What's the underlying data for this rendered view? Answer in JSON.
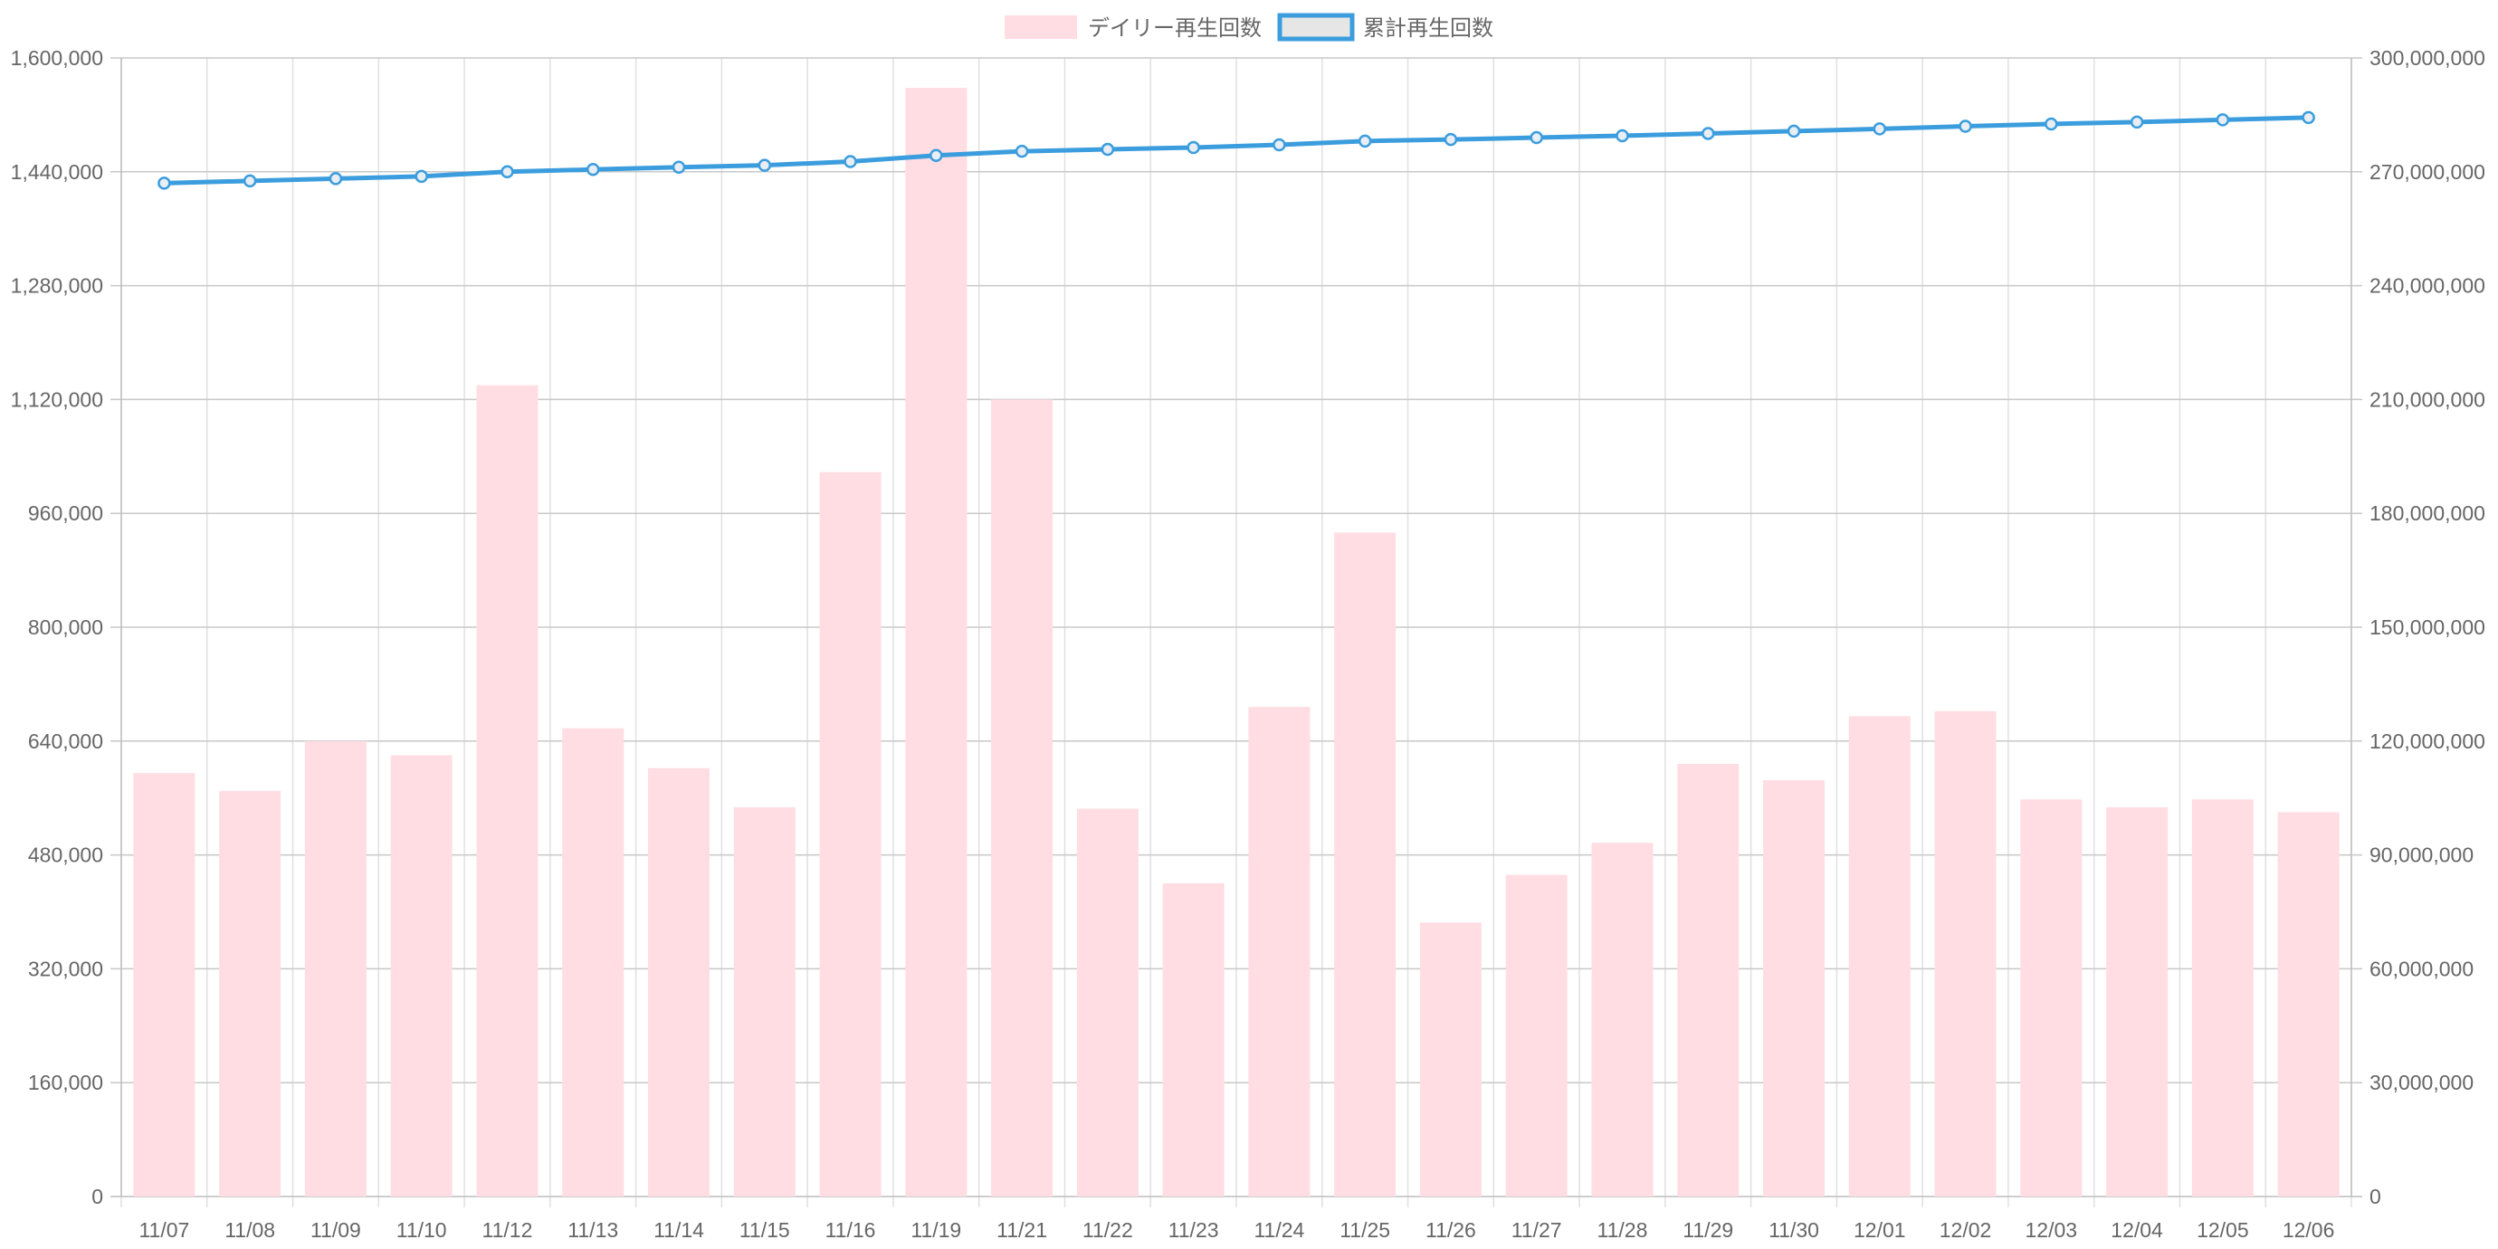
{
  "chart_data": {
    "type": "bar+line",
    "categories": [
      "11/07",
      "11/08",
      "11/09",
      "11/10",
      "11/12",
      "11/13",
      "11/14",
      "11/15",
      "11/16",
      "11/19",
      "11/21",
      "11/22",
      "11/23",
      "11/24",
      "11/25",
      "11/26",
      "11/27",
      "11/28",
      "11/29",
      "11/30",
      "12/01",
      "12/02",
      "12/03",
      "12/04",
      "12/05",
      "12/06"
    ],
    "series": [
      {
        "name": "デイリー再生回数",
        "type": "bar",
        "axis": "left",
        "color": "#ffdde3",
        "values": [
          595000,
          570000,
          640000,
          620000,
          1140000,
          658000,
          602000,
          547000,
          1018000,
          1558000,
          1120000,
          545000,
          440000,
          688000,
          933000,
          385000,
          452000,
          497000,
          608000,
          585000,
          675000,
          682000,
          558000,
          547000,
          558000,
          540000
        ]
      },
      {
        "name": "累計再生回数",
        "type": "line",
        "axis": "right",
        "color": "#3b9ddd",
        "values": [
          267000000,
          267600000,
          268200000,
          268800000,
          270000000,
          270600000,
          271200000,
          271700000,
          272700000,
          274300000,
          275400000,
          275900000,
          276400000,
          277100000,
          278100000,
          278500000,
          279000000,
          279500000,
          280100000,
          280700000,
          281300000,
          282000000,
          282600000,
          283100000,
          283700000,
          284300000
        ]
      }
    ],
    "y_left": {
      "min": 0,
      "max": 1600000,
      "step": 160000,
      "tick_labels": [
        "0",
        "160,000",
        "320,000",
        "480,000",
        "640,000",
        "800,000",
        "960,000",
        "1,120,000",
        "1,280,000",
        "1,440,000",
        "1,600,000"
      ]
    },
    "y_right": {
      "min": 0,
      "max": 300000000,
      "step": 30000000,
      "tick_labels": [
        "0",
        "30,000,000",
        "60,000,000",
        "90,000,000",
        "120,000,000",
        "150,000,000",
        "180,000,000",
        "210,000,000",
        "240,000,000",
        "270,000,000",
        "300,000,000"
      ]
    },
    "grid": true,
    "legend_position": "top-center",
    "title": "",
    "xlabel": "",
    "ylabel": ""
  }
}
